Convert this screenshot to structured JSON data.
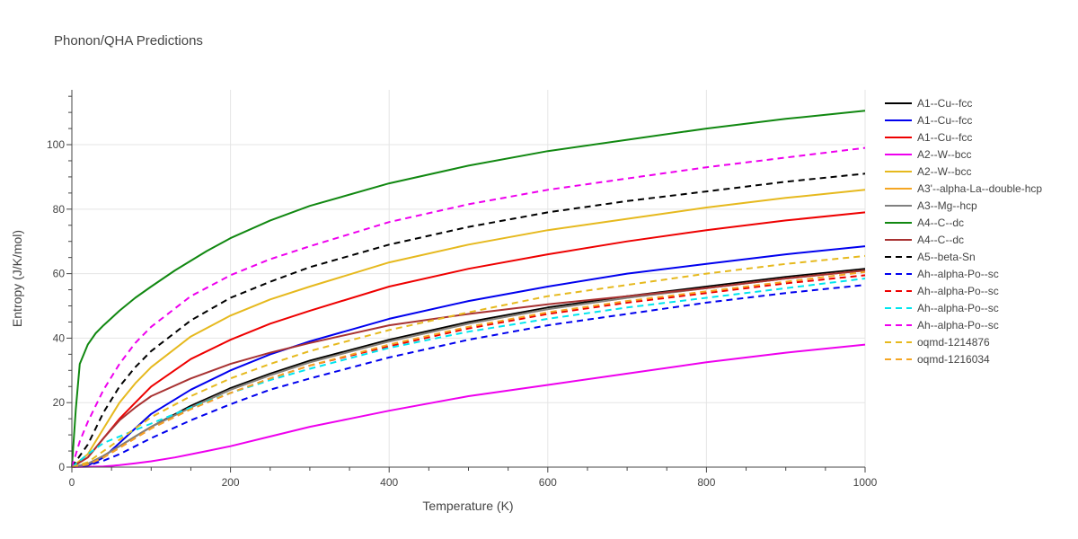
{
  "chart_data": {
    "type": "line",
    "title": "Phonon/QHA Predictions",
    "xlabel": "Temperature (K)",
    "ylabel": "Entropy (J/K/mol)",
    "xlim": [
      0,
      1000
    ],
    "ylim": [
      0,
      117
    ],
    "xticks": [
      0,
      200,
      400,
      600,
      800,
      1000
    ],
    "yticks": [
      0,
      20,
      40,
      60,
      80,
      100
    ],
    "grid": true,
    "legend_position": "right",
    "series": [
      {
        "name": "A1--Cu--fcc",
        "color": "#000000",
        "dash": "solid",
        "x": [
          0,
          20,
          40,
          60,
          80,
          100,
          150,
          200,
          250,
          300,
          400,
          500,
          600,
          700,
          800,
          900,
          1000
        ],
        "y": [
          0,
          1,
          3.5,
          6.5,
          9.5,
          12.5,
          19,
          24.5,
          29,
          33,
          39.5,
          45,
          49.5,
          53,
          56,
          59,
          61.5
        ]
      },
      {
        "name": "A1--Cu--fcc",
        "color": "#0000ee",
        "dash": "solid",
        "x": [
          0,
          20,
          40,
          60,
          80,
          100,
          150,
          200,
          250,
          300,
          400,
          500,
          600,
          700,
          800,
          900,
          1000
        ],
        "y": [
          0,
          0.5,
          3,
          7.5,
          12,
          16.5,
          24,
          30,
          35,
          39,
          46,
          51.5,
          56,
          60,
          63,
          66,
          68.5
        ]
      },
      {
        "name": "A1--Cu--fcc",
        "color": "#ee0000",
        "dash": "solid",
        "x": [
          0,
          20,
          40,
          60,
          80,
          100,
          150,
          200,
          250,
          300,
          400,
          500,
          600,
          700,
          800,
          900,
          1000
        ],
        "y": [
          0,
          3,
          9,
          15,
          20,
          25,
          33.5,
          39.5,
          44.5,
          48.5,
          56,
          61.5,
          66,
          70,
          73.5,
          76.5,
          79
        ]
      },
      {
        "name": "A2--W--bcc",
        "color": "#ee00ee",
        "dash": "solid",
        "x": [
          0,
          40,
          60,
          80,
          100,
          130,
          170,
          200,
          250,
          300,
          350,
          400,
          500,
          600,
          700,
          800,
          900,
          1000
        ],
        "y": [
          0,
          0.2,
          0.6,
          1.2,
          1.8,
          3,
          5,
          6.5,
          9.5,
          12.5,
          15,
          17.5,
          22,
          25.5,
          29,
          32.5,
          35.5,
          38
        ]
      },
      {
        "name": "A2--W--bcc",
        "color": "#e6b91e",
        "dash": "solid",
        "x": [
          0,
          20,
          40,
          60,
          80,
          100,
          150,
          200,
          250,
          300,
          400,
          500,
          600,
          700,
          800,
          900,
          1000
        ],
        "y": [
          0,
          4,
          12,
          20,
          26,
          31,
          40.5,
          47,
          52,
          56,
          63.5,
          69,
          73.5,
          77,
          80.5,
          83.5,
          86
        ]
      },
      {
        "name": "A3'--alpha-La--double-hcp",
        "color": "#f5a623",
        "dash": "solid",
        "x": [
          0,
          20,
          40,
          60,
          80,
          100,
          150,
          200,
          250,
          300,
          400,
          500,
          600,
          700,
          800,
          900,
          1000
        ],
        "y": [
          0,
          1,
          3.5,
          6.5,
          9.5,
          12.5,
          18.5,
          24,
          28.5,
          32.5,
          39,
          44.5,
          49,
          52.5,
          55.5,
          58.5,
          61
        ]
      },
      {
        "name": "A3--Mg--hcp",
        "color": "#808080",
        "dash": "solid",
        "x": [
          0,
          20,
          40,
          60,
          80,
          100,
          150,
          200,
          250,
          300,
          400,
          500,
          600,
          700,
          800,
          900,
          1000
        ],
        "y": [
          0,
          1,
          3.5,
          6.5,
          9.5,
          12.5,
          18.5,
          24,
          28.5,
          32.5,
          39,
          44.5,
          49,
          52.5,
          55.5,
          58.5,
          61
        ]
      },
      {
        "name": "A4--C--dc",
        "color": "#118811",
        "dash": "solid",
        "x": [
          0,
          5,
          10,
          20,
          30,
          40,
          60,
          80,
          100,
          130,
          170,
          200,
          250,
          300,
          400,
          500,
          600,
          700,
          800,
          900,
          1000
        ],
        "y": [
          0,
          18,
          32,
          38,
          41.5,
          44,
          48.5,
          52.5,
          56,
          61,
          67,
          71,
          76.5,
          81,
          88,
          93.5,
          98,
          101.5,
          105,
          108,
          110.5
        ]
      },
      {
        "name": "A4--C--dc",
        "color": "#a83232",
        "dash": "solid",
        "x": [
          0,
          20,
          40,
          60,
          80,
          100,
          150,
          200,
          250,
          300,
          400,
          500,
          600,
          700,
          800,
          900,
          1000
        ],
        "y": [
          0,
          3,
          9,
          14.5,
          18.5,
          22,
          27.5,
          32,
          35.5,
          38.5,
          44,
          47.5,
          50.5,
          53,
          55.5,
          58.5,
          61
        ]
      },
      {
        "name": "A5--beta-Sn",
        "color": "#000000",
        "dash": "dash",
        "x": [
          0,
          20,
          40,
          60,
          80,
          100,
          150,
          200,
          250,
          300,
          400,
          500,
          600,
          700,
          800,
          900,
          1000
        ],
        "y": [
          0,
          7,
          17,
          25,
          31,
          36,
          45.5,
          52.5,
          57.5,
          62,
          69,
          74.5,
          79,
          82.5,
          85.5,
          88.5,
          91
        ]
      },
      {
        "name": "Ah--alpha-Po--sc",
        "color": "#0000ee",
        "dash": "dash",
        "x": [
          0,
          20,
          40,
          60,
          80,
          100,
          150,
          200,
          250,
          300,
          400,
          500,
          600,
          700,
          800,
          900,
          1000
        ],
        "y": [
          0,
          0.5,
          2,
          4,
          6.5,
          9,
          14.5,
          19.5,
          24,
          27.5,
          34,
          39.5,
          44,
          47.5,
          51,
          54,
          56.5
        ]
      },
      {
        "name": "Ah--alpha-Po--sc",
        "color": "#ee0000",
        "dash": "dash",
        "x": [
          0,
          20,
          40,
          60,
          80,
          100,
          150,
          200,
          250,
          300,
          400,
          500,
          600,
          700,
          800,
          900,
          1000
        ],
        "y": [
          0,
          0.8,
          3,
          6,
          9,
          12,
          18,
          23,
          27.5,
          31.5,
          37.5,
          43,
          47.5,
          51,
          54,
          57,
          59.5
        ]
      },
      {
        "name": "Ah--alpha-Po--sc",
        "color": "#00e5ee",
        "dash": "dash",
        "x": [
          0,
          20,
          40,
          60,
          80,
          100,
          150,
          200,
          250,
          300,
          400,
          500,
          600,
          700,
          800,
          900,
          1000
        ],
        "y": [
          0,
          4,
          7.5,
          9.5,
          11.5,
          13.5,
          18.5,
          23,
          27,
          30.5,
          37,
          42,
          46,
          49.5,
          52.5,
          55.5,
          58.5
        ]
      },
      {
        "name": "Ah--alpha-Po--sc",
        "color": "#ee00ee",
        "dash": "dash",
        "x": [
          0,
          10,
          20,
          40,
          60,
          80,
          100,
          150,
          200,
          250,
          300,
          400,
          500,
          600,
          700,
          800,
          900,
          1000
        ],
        "y": [
          0,
          8,
          14,
          24,
          32,
          38.5,
          43.5,
          53,
          59.5,
          64.5,
          68.5,
          76,
          81.5,
          86,
          89.5,
          93,
          96,
          99
        ]
      },
      {
        "name": "oqmd-1214876",
        "color": "#e6b91e",
        "dash": "dash",
        "x": [
          0,
          20,
          40,
          60,
          80,
          100,
          150,
          200,
          250,
          300,
          400,
          500,
          600,
          700,
          800,
          900,
          1000
        ],
        "y": [
          0,
          1.5,
          5,
          8.5,
          12,
          15.5,
          22,
          27.5,
          32,
          36,
          42.5,
          48,
          53,
          56.5,
          60,
          63,
          65.5
        ]
      },
      {
        "name": "oqmd-1216034",
        "color": "#f5a623",
        "dash": "dash",
        "x": [
          0,
          20,
          40,
          60,
          80,
          100,
          150,
          200,
          250,
          300,
          400,
          500,
          600,
          700,
          800,
          900,
          1000
        ],
        "y": [
          0,
          0.8,
          3,
          6,
          9,
          12,
          18,
          23,
          27.5,
          31.5,
          38,
          43.5,
          48,
          51.5,
          54.5,
          57.5,
          60.5
        ]
      }
    ]
  }
}
